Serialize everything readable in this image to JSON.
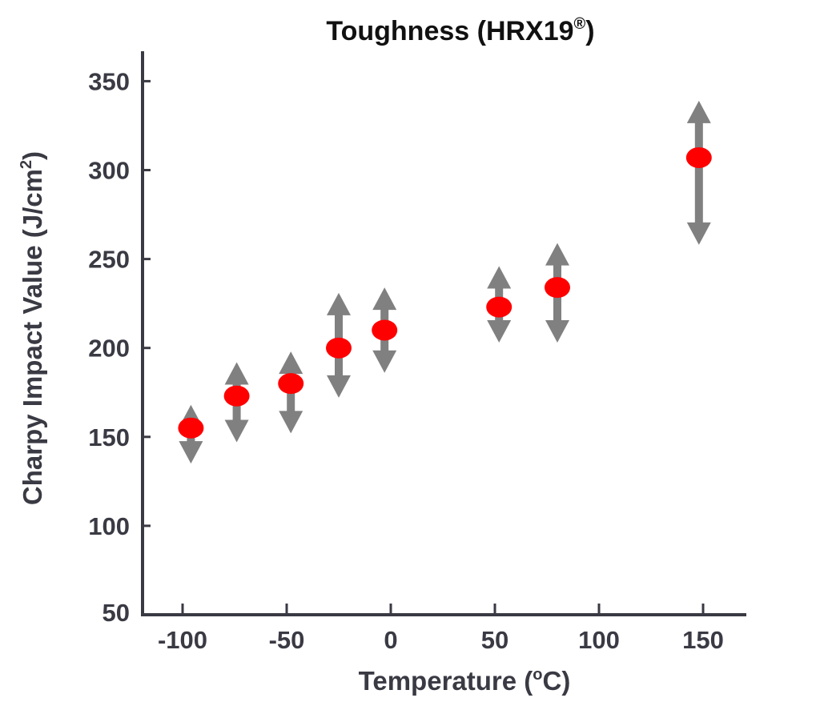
{
  "chart_data": {
    "type": "scatter",
    "title": "Toughness (HRX19",
    "title_mark": "®",
    "title_close": ")",
    "xlabel": "Temperature (",
    "xlabel_sup": "o",
    "xlabel_tail": "C)",
    "ylabel": "Charpy Impact Value (J/cm",
    "ylabel_sup": "2",
    "ylabel_tail": ")",
    "xlim": [
      -120,
      170
    ],
    "ylim": [
      50,
      365
    ],
    "x_ticks": [
      -100,
      -50,
      0,
      50,
      100,
      150
    ],
    "y_ticks": [
      50,
      100,
      150,
      200,
      250,
      300,
      350
    ],
    "grid": false,
    "colors": {
      "point": "#ff0000",
      "range_arrow": "#808080",
      "axis": "#3a3a44"
    },
    "points": [
      {
        "x": -96,
        "y": 155,
        "min": 135,
        "max": 168
      },
      {
        "x": -74,
        "y": 173,
        "min": 147,
        "max": 192
      },
      {
        "x": -48,
        "y": 180,
        "min": 152,
        "max": 198
      },
      {
        "x": -25,
        "y": 200,
        "min": 172,
        "max": 231
      },
      {
        "x": -3,
        "y": 210,
        "min": 186,
        "max": 234
      },
      {
        "x": 52,
        "y": 223,
        "min": 203,
        "max": 246
      },
      {
        "x": 80,
        "y": 234,
        "min": 203,
        "max": 259
      },
      {
        "x": 148,
        "y": 307,
        "min": 258,
        "max": 339
      }
    ]
  }
}
